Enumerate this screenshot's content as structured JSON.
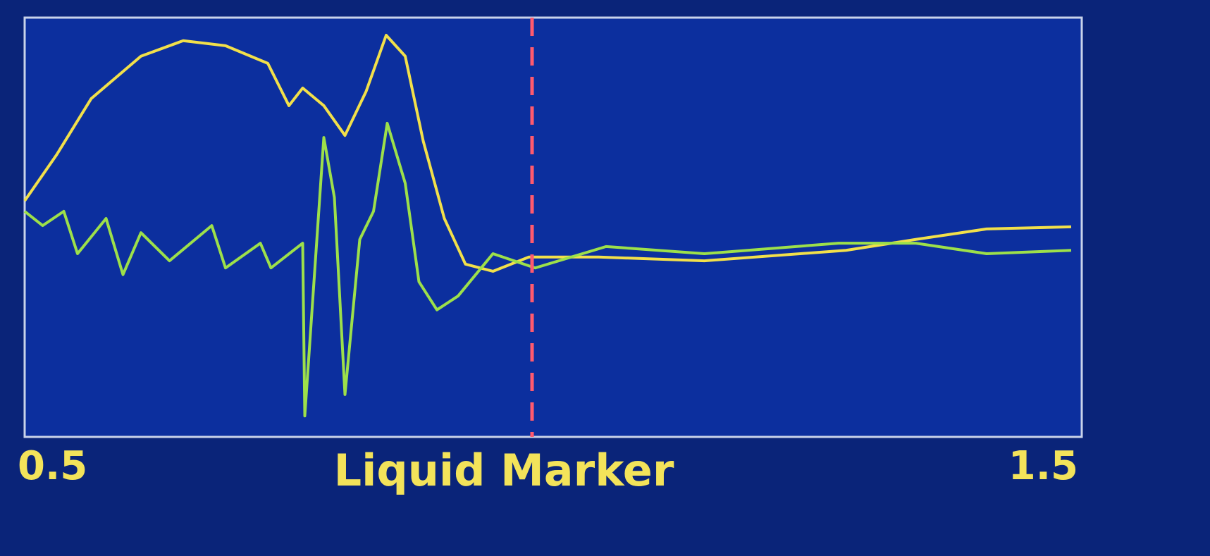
{
  "chart_data": {
    "type": "line",
    "marker_label": "Liquid Marker",
    "marker_x": 0.98,
    "marker_color": "#ff5a6e",
    "xlim": [
      0.5,
      1.5
    ],
    "xticks": [
      0.5,
      1.5
    ],
    "ylim": [
      0,
      100
    ],
    "series": [
      {
        "color": "#f2e04a",
        "x": [
          0.5,
          0.53,
          0.563,
          0.61,
          0.65,
          0.69,
          0.73,
          0.75,
          0.763,
          0.783,
          0.803,
          0.823,
          0.842,
          0.86,
          0.877,
          0.897,
          0.917,
          0.943,
          0.977,
          1.043,
          1.143,
          1.277,
          1.343,
          1.41,
          1.49
        ],
        "values": [
          56.3,
          67.2,
          80.7,
          90.8,
          94.5,
          93.3,
          89.1,
          79.0,
          83.2,
          79.0,
          71.9,
          82.4,
          95.8,
          90.8,
          70.6,
          52.1,
          41.2,
          39.5,
          42.9,
          42.9,
          42.0,
          44.5,
          47.1,
          49.6,
          50.1
        ]
      },
      {
        "color": "#9de04a",
        "x": [
          0.5,
          0.517,
          0.537,
          0.55,
          0.577,
          0.593,
          0.61,
          0.637,
          0.677,
          0.69,
          0.723,
          0.733,
          0.763,
          0.765,
          0.783,
          0.793,
          0.803,
          0.817,
          0.83,
          0.843,
          0.86,
          0.873,
          0.89,
          0.91,
          0.943,
          0.983,
          1.05,
          1.143,
          1.27,
          1.343,
          1.41,
          1.49
        ],
        "values": [
          53.8,
          50.4,
          53.8,
          43.7,
          52.1,
          38.7,
          48.7,
          42.0,
          50.4,
          40.3,
          46.2,
          40.3,
          46.2,
          5.0,
          71.4,
          57.1,
          10.1,
          47.1,
          53.8,
          74.8,
          60.5,
          37.0,
          30.3,
          33.6,
          43.7,
          40.3,
          45.4,
          43.7,
          46.2,
          46.2,
          43.7,
          44.5
        ]
      }
    ]
  }
}
